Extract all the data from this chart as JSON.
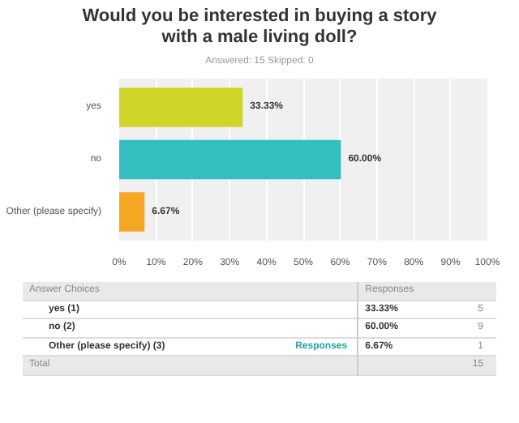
{
  "chart_data": {
    "type": "bar",
    "orientation": "horizontal",
    "title": "Would you be interested in buying a story with a male living doll?",
    "subtitle": "Answered: 15    Skipped: 0",
    "categories": [
      "yes",
      "no",
      "Other (please specify)"
    ],
    "values": [
      33.33,
      60.0,
      6.67
    ],
    "colors": [
      "#cfd62a",
      "#33bfbf",
      "#f5a623"
    ],
    "value_labels": [
      "33.33%",
      "60.00%",
      "6.67%"
    ],
    "xlim": [
      0,
      100
    ],
    "xticks": [
      {
        "value": 0,
        "label": "0%"
      },
      {
        "value": 10,
        "label": "10%"
      },
      {
        "value": 20,
        "label": "20%"
      },
      {
        "value": 30,
        "label": "30%"
      },
      {
        "value": 40,
        "label": "40%"
      },
      {
        "value": 50,
        "label": "50%"
      },
      {
        "value": 60,
        "label": "60%"
      },
      {
        "value": 70,
        "label": "70%"
      },
      {
        "value": 80,
        "label": "80%"
      },
      {
        "value": 90,
        "label": "90%"
      },
      {
        "value": 100,
        "label": "100%"
      }
    ],
    "grid": "x",
    "annotations": [
      "Answer Choices",
      "Responses",
      "yes (1)",
      "33.33%",
      "5",
      "no (2)",
      "60.00%",
      "9",
      "Other (please specify) (3)",
      "Responses",
      "6.67%",
      "1",
      "Total",
      "15"
    ]
  }
}
